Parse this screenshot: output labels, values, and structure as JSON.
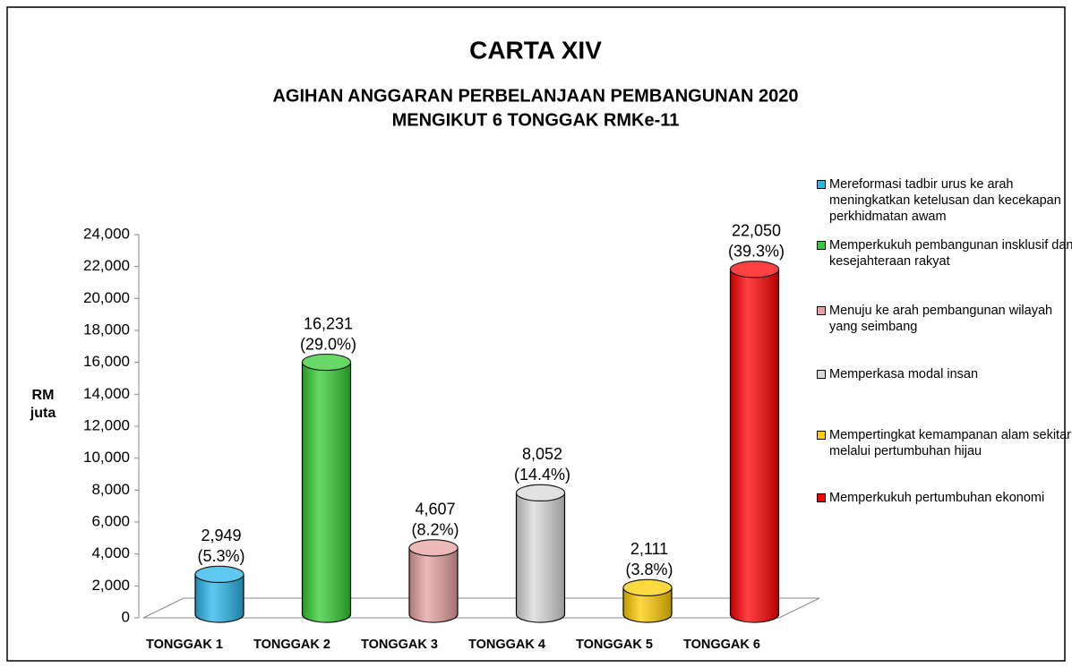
{
  "chart_data": {
    "type": "cylinder_bar",
    "title": "CARTA XIV",
    "subtitle": [
      "AGIHAN ANGGARAN PERBELANJAAN PEMBANGUNAN 2020",
      "MENGIKUT 6 TONGGAK RMKe-11"
    ],
    "y_label": "RM juta",
    "categories": [
      "TONGGAK 1",
      "TONGGAK 2",
      "TONGGAK 3",
      "TONGGAK 4",
      "TONGGAK 5",
      "TONGGAK 6"
    ],
    "values": [
      2949,
      16231,
      4607,
      8052,
      2111,
      22050
    ],
    "value_labels": [
      "2,949",
      "16,231",
      "4,607",
      "8,052",
      "2,111",
      "22,050"
    ],
    "share_labels": [
      "(5.3%)",
      "(29.0%)",
      "(8.2%)",
      "(14.4%)",
      "(3.8%)",
      "(39.3%)"
    ],
    "colors": [
      "#29b6e8",
      "#33cc33",
      "#e8a0a0",
      "#d9d9d9",
      "#ffcc00",
      "#ff0000"
    ],
    "legend_labels": [
      "Mereformasi tadbir urus ke arah meningkatkan ketelusan dan kecekapan perkhidmatan awam",
      "Memperkukuh pembangunan insklusif dan kesejahteraan rakyat",
      "Menuju ke arah pembangunan wilayah yang seimbang",
      "Memperkasa modal insan",
      "Mempertingkat kemampanan alam sekitar melalui pertumbuhan hijau",
      "Memperkukuh pertumbuhan ekonomi"
    ],
    "ylim": [
      0,
      24000
    ],
    "yticks": [
      0,
      {
        "value": 2000,
        "label": "2,000"
      },
      {
        "value": 4000,
        "label": "4,000"
      },
      {
        "value": 6000,
        "label": "6,000"
      },
      {
        "value": 8000,
        "label": "8,000"
      },
      {
        "value": 10000,
        "label": "10,000"
      },
      {
        "value": 12000,
        "label": "12,000"
      },
      {
        "value": 14000,
        "label": "14,000"
      },
      {
        "value": 16000,
        "label": "16,000"
      },
      {
        "value": 18000,
        "label": "18,000"
      },
      {
        "value": 20000,
        "label": "20,000"
      },
      {
        "value": 22000,
        "label": "22,000"
      },
      {
        "value": 24000,
        "label": "24,000"
      }
    ]
  }
}
